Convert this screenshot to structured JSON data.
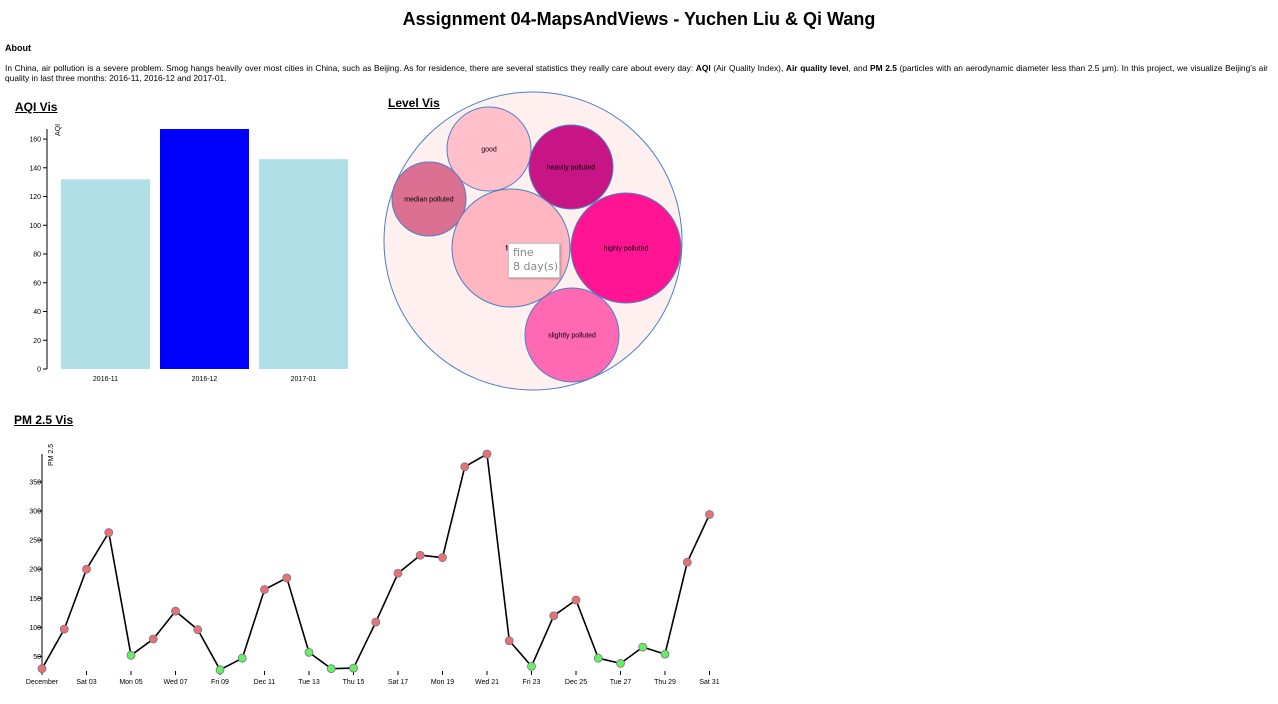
{
  "page": {
    "title": "Assignment 04-MapsAndViews - Yuchen Liu & Qi Wang",
    "about_heading": "About",
    "about": {
      "p1": "In China, air pollution is a severe problem. Smog hangs heavily over most cities in China, such as Beijing. As for residence, there are several statistics they really care about every day: ",
      "b1": "AQI",
      "p2": " (Air Quality Index), ",
      "b2": "Air quality level",
      "p3": ", and ",
      "b3": "PM 2.5",
      "p4": " (particles with an aerodynamic diameter less than 2.5 μm). In this project, we visualize Beijing's air quality in last three months: 2016-11, 2016-12 and 2017-01."
    }
  },
  "sections": {
    "aqi": "AQI Vis",
    "level": "Level Vis",
    "pm": "PM 2.5 Vis"
  },
  "tooltip": {
    "line1": "fine",
    "line2": "8 day(s)"
  },
  "colors": {
    "bar_default": "#b0dfe5",
    "bar_highlight": "#0000ff",
    "pack_outer": "#fff0f0",
    "pack_stroke": "#4f7fc0",
    "good_point": "#66ee66",
    "bad_point": "#e8707a"
  },
  "chart_data": [
    {
      "type": "bar",
      "ylabel": "AQI",
      "categories": [
        "2016-11",
        "2016-12",
        "2017-01"
      ],
      "values": [
        132,
        167,
        146
      ],
      "highlighted": "2016-12",
      "ylim": [
        0,
        167
      ],
      "yticks": [
        0,
        20,
        40,
        60,
        80,
        100,
        120,
        140,
        160
      ]
    },
    {
      "type": "bubble",
      "series": [
        {
          "name": "good",
          "color": "#ffc0cb"
        },
        {
          "name": "heavily polluted",
          "color": "#c71585"
        },
        {
          "name": "median polluted",
          "color": "#db7093"
        },
        {
          "name": "fine",
          "color": "#ffb6c1",
          "days": 8
        },
        {
          "name": "highly polluted",
          "color": "#ff1493"
        },
        {
          "name": "slightly polluted",
          "color": "#ff69b4"
        }
      ]
    },
    {
      "type": "line",
      "ylabel": "PM 2.5",
      "ylim": [
        25,
        398
      ],
      "yticks": [
        50,
        100,
        150,
        200,
        250,
        300,
        350
      ],
      "xticks": [
        "December",
        "Sat 03",
        "Mon 05",
        "Wed 07",
        "Fri 09",
        "Dec 11",
        "Tue 13",
        "Thu 15",
        "Sat 17",
        "Mon 19",
        "Wed 21",
        "Fri 23",
        "Dec 25",
        "Tue 27",
        "Thu 29",
        "Sat 31"
      ],
      "x": [
        1,
        2,
        3,
        4,
        5,
        6,
        7,
        8,
        9,
        10,
        11,
        12,
        13,
        14,
        15,
        16,
        17,
        18,
        19,
        20,
        21,
        22,
        23,
        24,
        25,
        26,
        27,
        28,
        29,
        30,
        31
      ],
      "values": [
        29,
        97,
        200,
        263,
        52,
        80,
        128,
        96,
        27,
        47,
        165,
        185,
        57,
        29,
        30,
        109,
        193,
        224,
        220,
        376,
        398,
        77,
        33,
        120,
        147,
        47,
        38,
        66,
        54,
        212,
        294
      ]
    }
  ]
}
